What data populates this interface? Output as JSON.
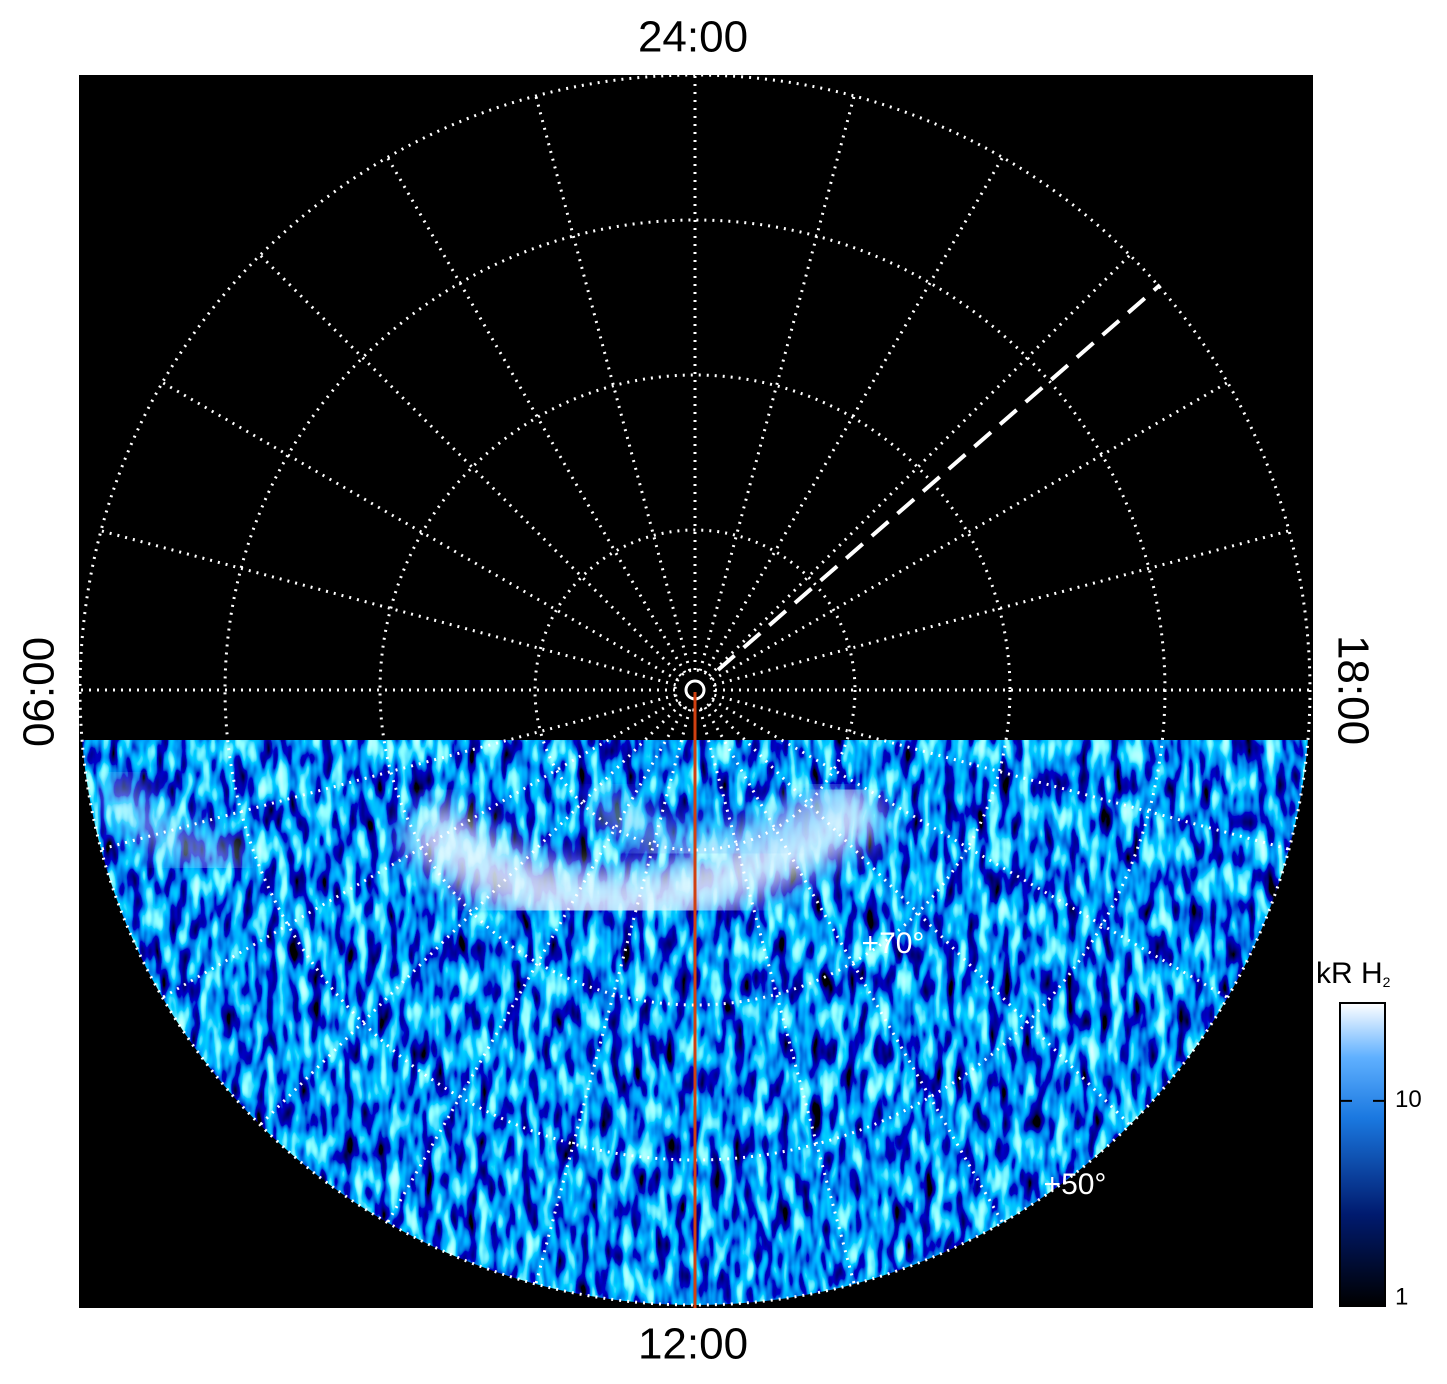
{
  "labels": {
    "top": "24:00",
    "bottom": "12:00",
    "left": "06:00",
    "right": "18:00"
  },
  "latitude_labels": [
    "+70°",
    "+50°"
  ],
  "colorbar": {
    "label": "kR H",
    "label_subscript": "2",
    "scale": "log",
    "lim": [
      1,
      30
    ],
    "ticks": [
      1,
      10
    ]
  }
}
